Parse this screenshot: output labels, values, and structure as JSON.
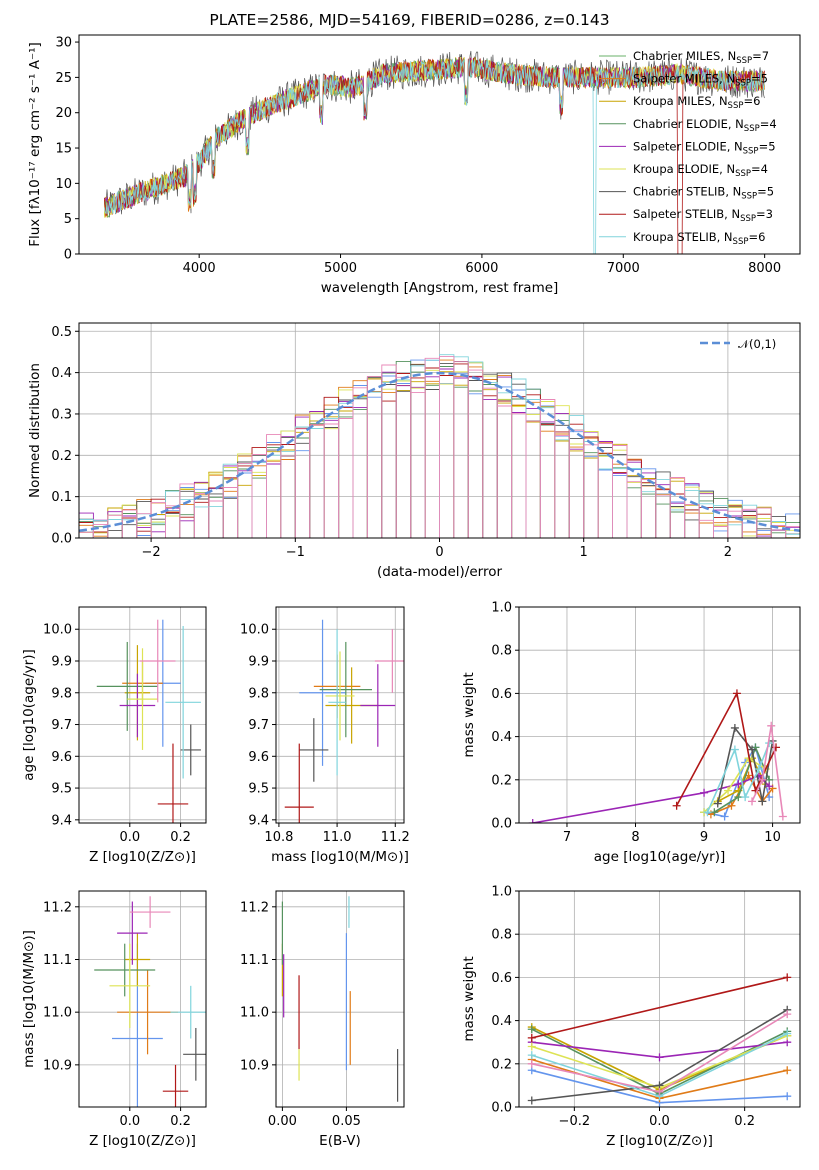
{
  "colors": [
    "#6495ed",
    "#e07b18",
    "#c8a400",
    "#56925e",
    "#9b25b5",
    "#dde354",
    "#555555",
    "#b01818",
    "#80d4dc",
    "#e888b8"
  ],
  "figure": {
    "title": "PLATE=2586, MJD=54169, FIBERID=0286, z=0.143"
  },
  "chart_data": [
    {
      "id": "spectrum",
      "type": "line",
      "xlabel": "wavelength [Angstrom, rest frame]",
      "ylabel": "Flux [fλ10⁻¹⁷ erg cm⁻² s⁻¹ A⁻¹]",
      "xlim": [
        3150,
        8250
      ],
      "ylim": [
        0,
        31
      ],
      "xticks": [
        4000,
        5000,
        6000,
        7000,
        8000
      ],
      "yticks": [
        0,
        5,
        10,
        15,
        20,
        25,
        30
      ],
      "grid": false,
      "legend_position": "top-right",
      "continuum": [
        [
          3330,
          6.5
        ],
        [
          3500,
          8
        ],
        [
          3700,
          9.5
        ],
        [
          3900,
          11
        ],
        [
          4000,
          13
        ],
        [
          4100,
          16
        ],
        [
          4300,
          19
        ],
        [
          4500,
          21
        ],
        [
          4700,
          22.5
        ],
        [
          4900,
          24
        ],
        [
          5100,
          23.5
        ],
        [
          5300,
          25.5
        ],
        [
          5600,
          26
        ],
        [
          5900,
          26.5
        ],
        [
          6200,
          25.5
        ],
        [
          6500,
          25
        ],
        [
          6800,
          25
        ],
        [
          7100,
          25
        ],
        [
          7400,
          25.5
        ],
        [
          7700,
          24.5
        ],
        [
          8000,
          24.5
        ]
      ],
      "series": [
        {
          "name": "Chabrier MILES, N_SSP=7"
        },
        {
          "name": "Salpeter MILES, N_SSP=5"
        },
        {
          "name": "Kroupa MILES, N_SSP=6"
        },
        {
          "name": "Chabrier ELODIE, N_SSP=4"
        },
        {
          "name": "Salpeter ELODIE, N_SSP=5"
        },
        {
          "name": "Kroupa ELODIE, N_SSP=4"
        },
        {
          "name": "Chabrier STELIB, N_SSP=5"
        },
        {
          "name": "Salpeter STELIB, N_SSP=3"
        },
        {
          "name": "Kroupa STELIB, N_SSP=6"
        }
      ]
    },
    {
      "id": "residuals",
      "type": "bar",
      "xlabel": "(data-model)/error",
      "ylabel": "Normed distribution",
      "xlim": [
        -2.5,
        2.5
      ],
      "ylim": [
        0,
        0.52
      ],
      "xticks": [
        -2,
        -1,
        0,
        1,
        2
      ],
      "yticks": [
        0.0,
        0.1,
        0.2,
        0.3,
        0.4,
        0.5
      ],
      "grid": true,
      "legend_position": "top-right",
      "reference_curve": {
        "name": "𝒩(0,1)",
        "mean": 0,
        "sd": 1
      },
      "bin_width": 0.1,
      "histogram_count": 10
    },
    {
      "id": "age-vs-z",
      "type": "scatter",
      "xlabel": "Z [log10(Z/Z⊙)]",
      "ylabel": "age  [log10(age/yr)]",
      "xlim": [
        -0.2,
        0.3
      ],
      "ylim": [
        9.39,
        10.07
      ],
      "xticks": [
        0.0,
        0.2
      ],
      "yticks": [
        9.4,
        9.5,
        9.6,
        9.7,
        9.8,
        9.9,
        10.0
      ],
      "grid": true,
      "points": [
        {
          "x": 0.13,
          "y": 9.83,
          "ex": 0.07,
          "ey": 0.2
        },
        {
          "x": 0.05,
          "y": 9.83,
          "ex": 0.08,
          "ey": 0.07
        },
        {
          "x": 0.03,
          "y": 9.8,
          "ex": 0.05,
          "ey": 0.15
        },
        {
          "x": -0.01,
          "y": 9.82,
          "ex": 0.12,
          "ey": 0.14
        },
        {
          "x": 0.03,
          "y": 9.76,
          "ex": 0.07,
          "ey": 0.1
        },
        {
          "x": 0.05,
          "y": 9.78,
          "ex": 0.06,
          "ey": 0.16
        },
        {
          "x": 0.24,
          "y": 9.62,
          "ex": 0.04,
          "ey": 0.08
        },
        {
          "x": 0.17,
          "y": 9.45,
          "ex": 0.06,
          "ey": 0.19
        },
        {
          "x": 0.21,
          "y": 9.77,
          "ex": 0.07,
          "ey": 0.24
        },
        {
          "x": 0.11,
          "y": 9.9,
          "ex": 0.07,
          "ey": 0.13
        }
      ]
    },
    {
      "id": "age-vs-mass",
      "type": "scatter",
      "xlabel": "mass [log10(M/M⊙)]",
      "ylabel": "",
      "xlim": [
        10.79,
        11.23
      ],
      "ylim": [
        9.39,
        10.07
      ],
      "xticks": [
        10.8,
        11.0,
        11.2
      ],
      "yticks": [
        9.4,
        9.5,
        9.6,
        9.7,
        9.8,
        9.9,
        10.0
      ],
      "grid": true,
      "points": [
        {
          "x": 10.95,
          "y": 9.8,
          "ex": 0.08,
          "ey": 0.23
        },
        {
          "x": 11.0,
          "y": 9.82,
          "ex": 0.08,
          "ey": 0.1
        },
        {
          "x": 11.05,
          "y": 9.76,
          "ex": 0.09,
          "ey": 0.12
        },
        {
          "x": 11.03,
          "y": 9.81,
          "ex": 0.09,
          "ey": 0.15
        },
        {
          "x": 11.14,
          "y": 9.76,
          "ex": 0.06,
          "ey": 0.13
        },
        {
          "x": 11.01,
          "y": 9.79,
          "ex": 0.05,
          "ey": 0.14
        },
        {
          "x": 10.92,
          "y": 9.62,
          "ex": 0.05,
          "ey": 0.1
        },
        {
          "x": 10.87,
          "y": 9.44,
          "ex": 0.05,
          "ey": 0.2
        },
        {
          "x": 11.0,
          "y": 9.77,
          "ex": 0.03,
          "ey": 0.23
        },
        {
          "x": 11.19,
          "y": 9.9,
          "ex": 0.06,
          "ey": 0.1
        }
      ]
    },
    {
      "id": "weight-vs-age",
      "type": "line",
      "xlabel": "age  [log10(age/yr)]",
      "ylabel": "mass weight",
      "xlim": [
        6.3,
        10.4
      ],
      "ylim": [
        0,
        1
      ],
      "xticks": [
        7,
        8,
        9,
        10
      ],
      "yticks": [
        0.0,
        0.2,
        0.4,
        0.6,
        0.8,
        1.0
      ],
      "grid": true,
      "series": [
        {
          "points": [
            [
              9.0,
              0.05
            ],
            [
              9.3,
              0.03
            ],
            [
              9.6,
              0.28
            ],
            [
              9.75,
              0.35
            ],
            [
              9.95,
              0.12
            ]
          ]
        },
        {
          "points": [
            [
              9.1,
              0.04
            ],
            [
              9.4,
              0.08
            ],
            [
              9.65,
              0.22
            ],
            [
              9.85,
              0.1
            ],
            [
              10.0,
              0.16
            ]
          ]
        },
        {
          "points": [
            [
              9.2,
              0.1
            ],
            [
              9.5,
              0.15
            ],
            [
              9.7,
              0.3
            ],
            [
              9.9,
              0.18
            ]
          ]
        },
        {
          "points": [
            [
              9.15,
              0.05
            ],
            [
              9.5,
              0.12
            ],
            [
              9.75,
              0.35
            ],
            [
              9.95,
              0.2
            ]
          ]
        },
        {
          "points": [
            [
              6.5,
              0.0
            ],
            [
              9.0,
              0.14
            ],
            [
              9.5,
              0.18
            ],
            [
              9.8,
              0.22
            ],
            [
              9.95,
              0.17
            ]
          ]
        },
        {
          "points": [
            [
              9.0,
              0.05
            ],
            [
              9.35,
              0.15
            ],
            [
              9.65,
              0.3
            ],
            [
              9.9,
              0.25
            ]
          ]
        },
        {
          "points": [
            [
              9.2,
              0.09
            ],
            [
              9.45,
              0.44
            ],
            [
              9.7,
              0.34
            ],
            [
              9.85,
              0.1
            ],
            [
              10.0,
              0.38
            ]
          ]
        },
        {
          "points": [
            [
              8.6,
              0.08
            ],
            [
              9.48,
              0.6
            ],
            [
              9.75,
              0.15
            ],
            [
              10.05,
              0.35
            ]
          ]
        },
        {
          "points": [
            [
              9.05,
              0.05
            ],
            [
              9.45,
              0.34
            ],
            [
              9.6,
              0.12
            ],
            [
              9.8,
              0.25
            ],
            [
              9.95,
              0.37
            ]
          ]
        },
        {
          "points": [
            [
              9.7,
              0.1
            ],
            [
              9.85,
              0.2
            ],
            [
              9.98,
              0.45
            ],
            [
              10.15,
              0.03
            ]
          ]
        }
      ]
    },
    {
      "id": "mass-vs-z",
      "type": "scatter",
      "xlabel": "Z [log10(Z/Z⊙)]",
      "ylabel": "mass [log10(M/M⊙)]",
      "xlim": [
        -0.2,
        0.3
      ],
      "ylim": [
        10.82,
        11.23
      ],
      "xticks": [
        0.0,
        0.2
      ],
      "yticks": [
        10.9,
        11.0,
        11.1,
        11.2
      ],
      "grid": true,
      "points": [
        {
          "x": 0.03,
          "y": 10.95,
          "ex": 0.1,
          "ey": 0.18
        },
        {
          "x": 0.07,
          "y": 11.0,
          "ex": 0.12,
          "ey": 0.08
        },
        {
          "x": 0.03,
          "y": 11.1,
          "ex": 0.05,
          "ey": 0.05
        },
        {
          "x": -0.02,
          "y": 11.08,
          "ex": 0.12,
          "ey": 0.05
        },
        {
          "x": 0.01,
          "y": 11.15,
          "ex": 0.06,
          "ey": 0.06
        },
        {
          "x": 0.0,
          "y": 11.05,
          "ex": 0.08,
          "ey": 0.08
        },
        {
          "x": 0.26,
          "y": 10.92,
          "ex": 0.05,
          "ey": 0.05
        },
        {
          "x": 0.18,
          "y": 10.85,
          "ex": 0.05,
          "ey": 0.05
        },
        {
          "x": 0.24,
          "y": 11.0,
          "ex": 0.08,
          "ey": 0.05
        },
        {
          "x": 0.08,
          "y": 11.19,
          "ex": 0.08,
          "ey": 0.03
        }
      ]
    },
    {
      "id": "mass-vs-ebv",
      "type": "scatter",
      "xlabel": "E(B-V)",
      "ylabel": "",
      "xlim": [
        -0.005,
        0.095
      ],
      "ylim": [
        10.82,
        11.23
      ],
      "xticks": [
        0.0,
        0.05
      ],
      "yticks": [
        10.9,
        11.0,
        11.1,
        11.2
      ],
      "grid": true,
      "points": [
        {
          "x": 0.05,
          "y": 11.02,
          "ey": 0.13
        },
        {
          "x": 0.053,
          "y": 10.97,
          "ey": 0.07
        },
        {
          "x": 0.0,
          "y": 11.08,
          "ey": 0.05
        },
        {
          "x": 0.0,
          "y": 11.15,
          "ey": 0.06
        },
        {
          "x": 0.001,
          "y": 11.05,
          "ey": 0.06
        },
        {
          "x": 0.013,
          "y": 10.9,
          "ey": 0.03
        },
        {
          "x": 0.09,
          "y": 10.88,
          "ey": 0.05
        },
        {
          "x": 0.013,
          "y": 11.0,
          "ey": 0.07
        },
        {
          "x": 0.052,
          "y": 11.19,
          "ey": 0.03
        }
      ]
    },
    {
      "id": "weight-vs-z",
      "type": "line",
      "xlabel": "Z [log10(Z/Z⊙)]",
      "ylabel": "mass weight",
      "xlim": [
        -0.33,
        0.33
      ],
      "ylim": [
        0,
        1
      ],
      "xticks": [
        -0.2,
        0.0,
        0.2
      ],
      "yticks": [
        0.0,
        0.2,
        0.4,
        0.6,
        0.8,
        1.0
      ],
      "grid": true,
      "series": [
        {
          "points": [
            [
              -0.3,
              0.17
            ],
            [
              0.0,
              0.02
            ],
            [
              0.3,
              0.05
            ]
          ]
        },
        {
          "points": [
            [
              -0.3,
              0.22
            ],
            [
              0.0,
              0.04
            ],
            [
              0.3,
              0.17
            ]
          ]
        },
        {
          "points": [
            [
              -0.3,
              0.37
            ],
            [
              0.0,
              0.08
            ],
            [
              0.3,
              0.33
            ]
          ]
        },
        {
          "points": [
            [
              -0.3,
              0.36
            ],
            [
              0.0,
              0.06
            ],
            [
              0.3,
              0.35
            ]
          ]
        },
        {
          "points": [
            [
              -0.3,
              0.3
            ],
            [
              0.0,
              0.23
            ],
            [
              0.3,
              0.3
            ]
          ]
        },
        {
          "points": [
            [
              -0.3,
              0.28
            ],
            [
              0.0,
              0.09
            ],
            [
              0.3,
              0.33
            ]
          ]
        },
        {
          "points": [
            [
              -0.3,
              0.03
            ],
            [
              0.0,
              0.1
            ],
            [
              0.3,
              0.45
            ]
          ]
        },
        {
          "points": [
            [
              -0.3,
              0.32
            ],
            [
              0.3,
              0.6
            ]
          ]
        },
        {
          "points": [
            [
              -0.3,
              0.24
            ],
            [
              0.0,
              0.05
            ],
            [
              0.3,
              0.34
            ]
          ]
        },
        {
          "points": [
            [
              -0.3,
              0.2
            ],
            [
              0.0,
              0.07
            ],
            [
              0.3,
              0.43
            ]
          ]
        }
      ]
    }
  ]
}
